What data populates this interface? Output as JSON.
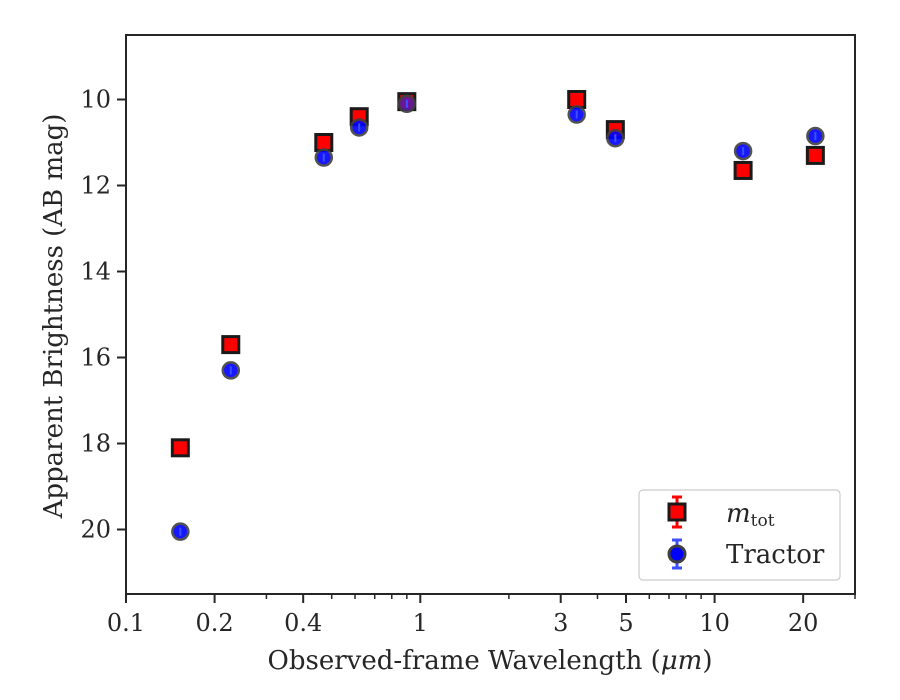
{
  "chart_data": {
    "type": "scatter",
    "xlabel_main": "Observed-frame Wavelength (",
    "xlabel_unit": "μm",
    "xlabel_close": ")",
    "ylabel": "Apparent Brightness (AB mag)",
    "x_scale": "log",
    "y_inverted": true,
    "xlim": [
      0.1,
      30
    ],
    "ylim": [
      21.5,
      8.5
    ],
    "x_ticks": [
      {
        "value": 0.1,
        "label": "0.1"
      },
      {
        "value": 0.2,
        "label": "0.2"
      },
      {
        "value": 0.4,
        "label": "0.4"
      },
      {
        "value": 1,
        "label": "1"
      },
      {
        "value": 3,
        "label": "3"
      },
      {
        "value": 5,
        "label": "5"
      },
      {
        "value": 10,
        "label": "10"
      },
      {
        "value": 20,
        "label": "20"
      }
    ],
    "x_minor_ticks": [
      0.3,
      0.5,
      0.6,
      0.7,
      0.8,
      0.9,
      2,
      4,
      6,
      7,
      8,
      9,
      30
    ],
    "y_ticks": [
      {
        "value": 10,
        "label": "10"
      },
      {
        "value": 12,
        "label": "12"
      },
      {
        "value": 14,
        "label": "14"
      },
      {
        "value": 16,
        "label": "16"
      },
      {
        "value": 18,
        "label": "18"
      },
      {
        "value": 20,
        "label": "20"
      }
    ],
    "legend_position": "lower-right",
    "series": [
      {
        "name_italic": "m",
        "name_sub": "tot",
        "marker": "square",
        "color": "#ff0000",
        "edge_color": "#1a1a1a",
        "errorbar_color": "#ff0000",
        "x": [
          0.153,
          0.227,
          0.47,
          0.62,
          0.9,
          3.4,
          4.6,
          12.5,
          22.0
        ],
        "y": [
          18.1,
          15.7,
          11.0,
          10.4,
          10.05,
          10.0,
          10.7,
          11.65,
          11.3
        ]
      },
      {
        "name": "Tractor",
        "marker": "circle",
        "color": "#0000ff",
        "edge_color": "#404040",
        "errorbar_color": "#3c50ff",
        "x": [
          0.153,
          0.227,
          0.47,
          0.62,
          0.9,
          3.4,
          4.6,
          12.5,
          22.0
        ],
        "y": [
          20.05,
          16.3,
          11.35,
          10.65,
          10.1,
          10.35,
          10.9,
          11.2,
          10.85
        ]
      }
    ]
  },
  "colors": {
    "axis": "#262626",
    "overlap_marker": "#5a1aa8"
  }
}
